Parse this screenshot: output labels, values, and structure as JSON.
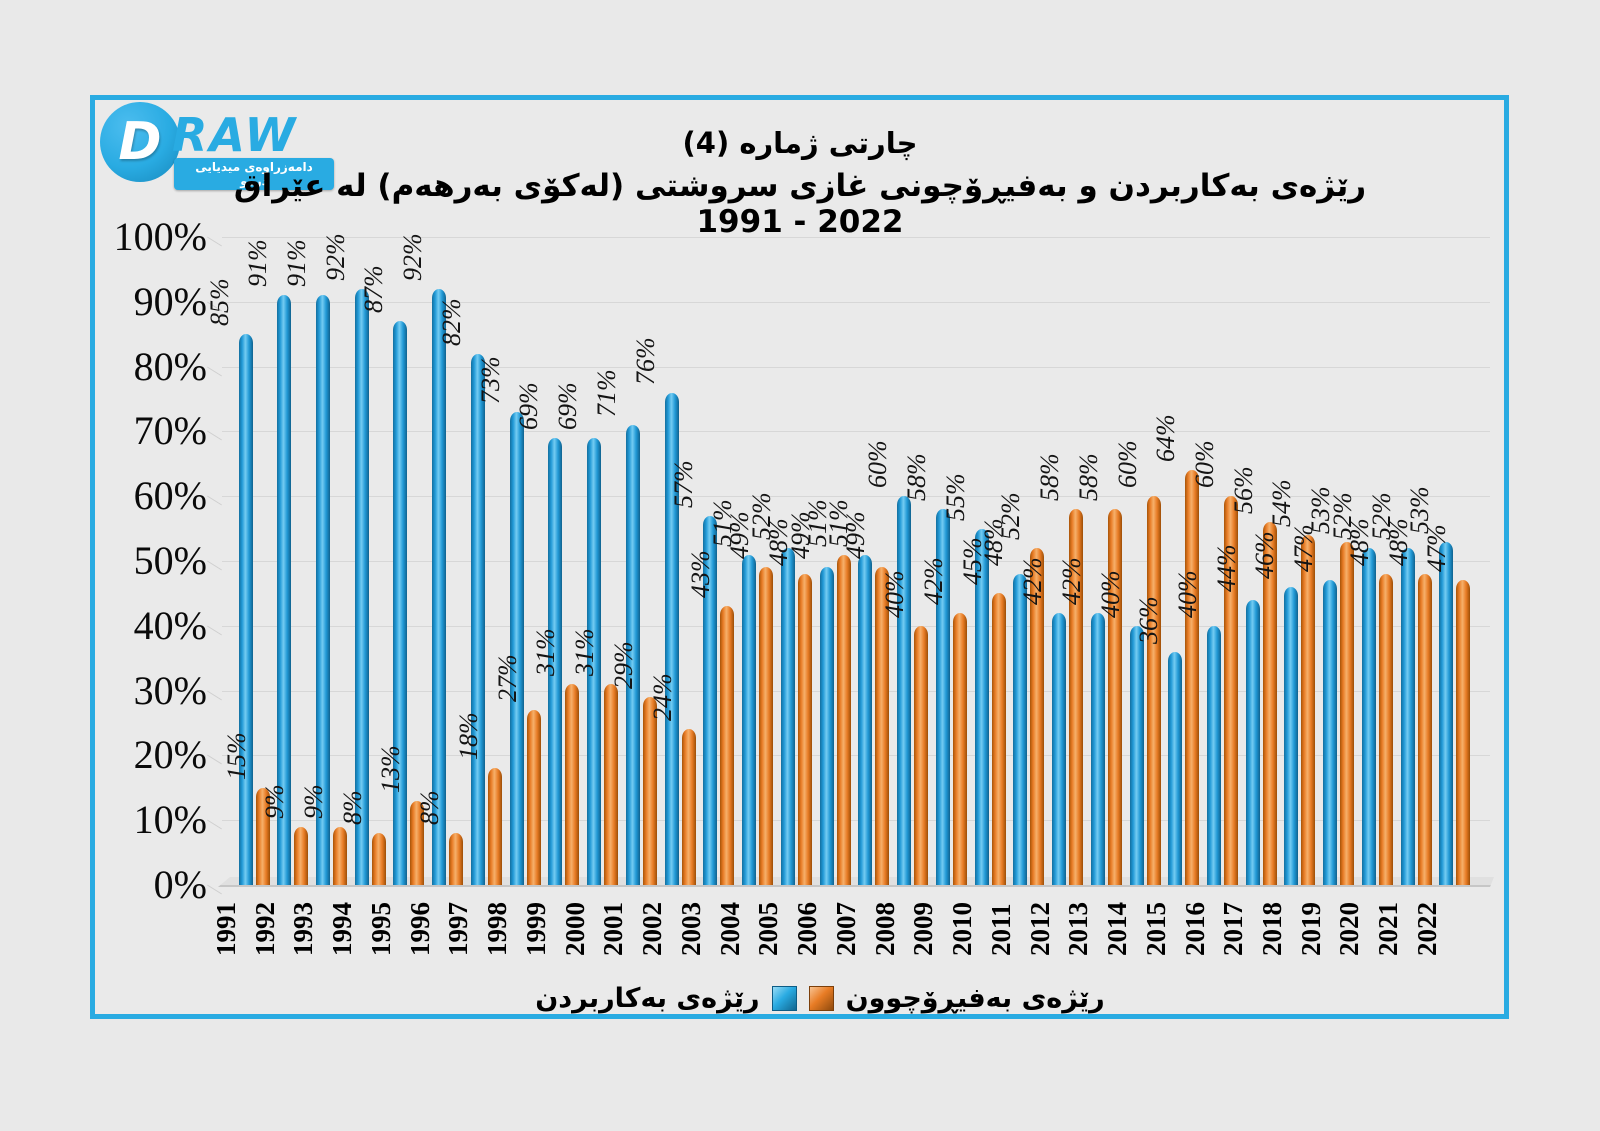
{
  "logo": {
    "letter": "D",
    "brand": "RAW",
    "tagline": "دامەزراوەی میدیایی درەو"
  },
  "title": {
    "line1": "چارتی ژماره (4)",
    "line2": "رێژەی بەکاربردن و بەفیڕۆچونی غازی سروشتی (لەکۆی بەرهەم) لە عێراق 2022 - 1991"
  },
  "colors": {
    "frame_blue": "#29abe2",
    "bar_blue": "#2199d6",
    "bar_orange": "#e87c25",
    "background": "#e9e9e9",
    "gridline": "#d7d7d7"
  },
  "y_axis": {
    "ticks": [
      "0%",
      "10%",
      "20%",
      "30%",
      "40%",
      "50%",
      "60%",
      "70%",
      "80%",
      "90%",
      "100%"
    ]
  },
  "chart_data": {
    "type": "bar",
    "title": "رێژەی بەکاربردن و بەفیڕۆچونی غازی سروشتی (لەکۆی بەرهەم) لە عێراق 2022 - 1991",
    "subtitle": "چارتی ژماره (4)",
    "categories": [
      1991,
      1992,
      1993,
      1994,
      1995,
      1996,
      1997,
      1998,
      1999,
      2000,
      2001,
      2002,
      2003,
      2004,
      2005,
      2006,
      2007,
      2008,
      2009,
      2010,
      2011,
      2012,
      2013,
      2014,
      2015,
      2016,
      2017,
      2018,
      2019,
      2020,
      2021,
      2022
    ],
    "series": [
      {
        "key": "usage",
        "name": "رێژەی بەکاربردن",
        "color": "#2199d6",
        "values": [
          85,
          91,
          91,
          92,
          87,
          92,
          82,
          73,
          69,
          69,
          71,
          76,
          57,
          51,
          52,
          49,
          51,
          60,
          58,
          55,
          48,
          42,
          42,
          40,
          36,
          40,
          44,
          46,
          47,
          52,
          52,
          53
        ]
      },
      {
        "key": "flaring",
        "name": "رێژەی بەفیڕۆچوون",
        "color": "#e87c25",
        "values": [
          15,
          9,
          9,
          8,
          13,
          8,
          18,
          27,
          31,
          31,
          29,
          24,
          43,
          49,
          48,
          51,
          49,
          40,
          42,
          45,
          52,
          58,
          58,
          60,
          64,
          60,
          56,
          54,
          53,
          48,
          48,
          47
        ]
      }
    ],
    "value_suffix": "%",
    "ylim": [
      0,
      100
    ],
    "ytick_step": 10,
    "grid": true,
    "legend_position": "bottom",
    "data_labels": "rotated-vertical",
    "x_labels": "rotated-vertical"
  }
}
